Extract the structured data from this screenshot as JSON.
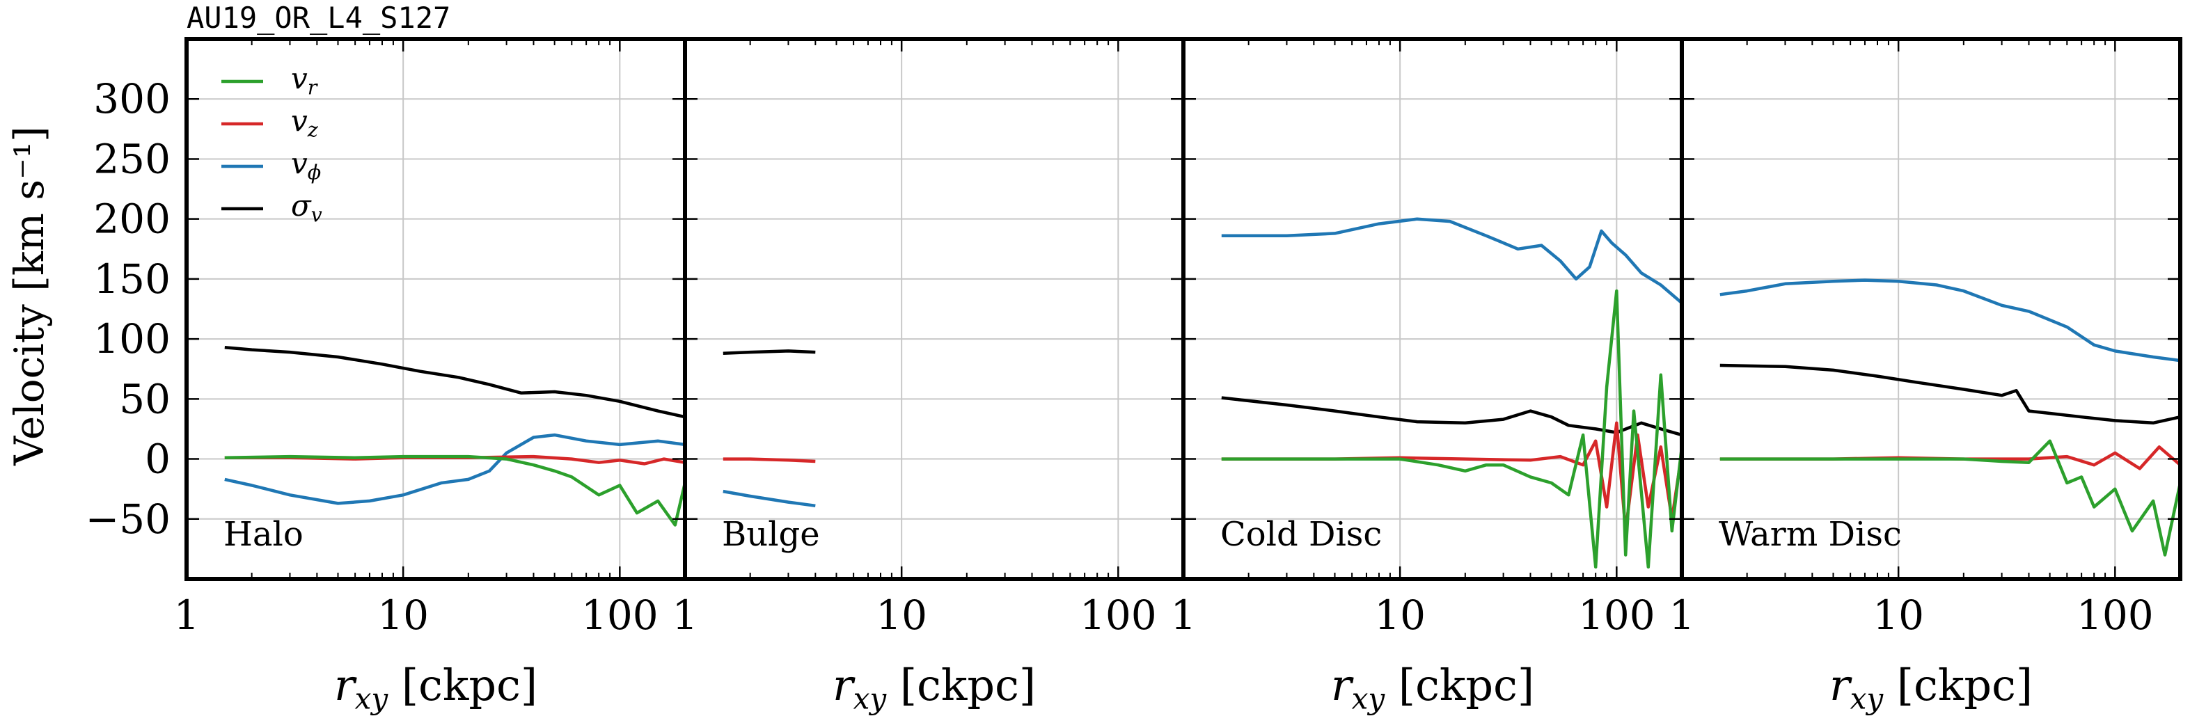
{
  "figure_title": "AU19_OR_L4_S127",
  "colors": {
    "vr": "#2ca02c",
    "vz": "#d62728",
    "vphi": "#1f77b4",
    "sigma": "#000000",
    "grid": "#c8c8c8"
  },
  "chart_data": [
    {
      "type": "line",
      "panel_label": "Halo",
      "xlabel_main": "r",
      "xlabel_sub": "xy",
      "xlabel_unit": "[ckpc]",
      "ylabel": "Velocity [km s⁻¹]",
      "xscale": "log",
      "xlim": [
        1,
        200
      ],
      "ylim": [
        -100,
        350
      ],
      "xticks": [
        1,
        10,
        100
      ],
      "xtick_labels": [
        "1",
        "10",
        "100"
      ],
      "yticks": [
        -50,
        0,
        50,
        100,
        150,
        200,
        250,
        300
      ],
      "ytick_labels": [
        "−50",
        "0",
        "50",
        "100",
        "150",
        "200",
        "250",
        "300"
      ],
      "grid": true,
      "legend": {
        "placement": "top-left",
        "entries": [
          {
            "key": "vr",
            "main": "v",
            "sub": "r"
          },
          {
            "key": "vz",
            "main": "v",
            "sub": "z"
          },
          {
            "key": "vphi",
            "main": "v",
            "sub": "ϕ"
          },
          {
            "key": "sigma",
            "main": "σ",
            "sub": "v"
          }
        ]
      },
      "series": [
        {
          "key": "sigma",
          "x": [
            1.5,
            2,
            3,
            5,
            8,
            12,
            18,
            25,
            35,
            50,
            70,
            100,
            150,
            200
          ],
          "y": [
            93,
            91,
            89,
            85,
            79,
            73,
            68,
            62,
            55,
            56,
            53,
            48,
            40,
            35
          ]
        },
        {
          "key": "vphi",
          "x": [
            1.5,
            2,
            3,
            5,
            7,
            10,
            15,
            20,
            25,
            30,
            40,
            50,
            70,
            100,
            150,
            200
          ],
          "y": [
            -17,
            -22,
            -30,
            -37,
            -35,
            -30,
            -20,
            -17,
            -10,
            5,
            18,
            20,
            15,
            12,
            15,
            12
          ]
        },
        {
          "key": "vz",
          "x": [
            1.5,
            3,
            6,
            10,
            20,
            40,
            60,
            80,
            100,
            130,
            160,
            200
          ],
          "y": [
            1,
            1,
            0,
            1,
            1,
            2,
            0,
            -3,
            -1,
            -4,
            0,
            -3
          ]
        },
        {
          "key": "vr",
          "x": [
            1.5,
            3,
            6,
            10,
            20,
            30,
            40,
            50,
            60,
            80,
            100,
            120,
            150,
            180,
            200
          ],
          "y": [
            1,
            2,
            1,
            2,
            2,
            0,
            -5,
            -10,
            -15,
            -30,
            -22,
            -45,
            -35,
            -55,
            -20
          ]
        }
      ]
    },
    {
      "type": "line",
      "panel_label": "Bulge",
      "xlabel_main": "r",
      "xlabel_sub": "xy",
      "xlabel_unit": "[ckpc]",
      "xscale": "log",
      "xlim": [
        1,
        200
      ],
      "ylim": [
        -100,
        350
      ],
      "xticks": [
        1,
        10,
        100
      ],
      "xtick_labels": [
        "1",
        "10",
        "100"
      ],
      "grid": true,
      "series": [
        {
          "key": "sigma",
          "x": [
            1.5,
            2,
            3,
            4
          ],
          "y": [
            88,
            89,
            90,
            89
          ]
        },
        {
          "key": "vz",
          "x": [
            1.5,
            2,
            3,
            4
          ],
          "y": [
            0,
            0,
            -1,
            -2
          ]
        },
        {
          "key": "vphi",
          "x": [
            1.5,
            2,
            3,
            4
          ],
          "y": [
            -27,
            -31,
            -36,
            -39
          ]
        }
      ]
    },
    {
      "type": "line",
      "panel_label": "Cold Disc",
      "xlabel_main": "r",
      "xlabel_sub": "xy",
      "xlabel_unit": "[ckpc]",
      "xscale": "log",
      "xlim": [
        1,
        200
      ],
      "ylim": [
        -100,
        350
      ],
      "xticks": [
        1,
        10,
        100
      ],
      "xtick_labels": [
        "1",
        "10",
        "100"
      ],
      "grid": true,
      "series": [
        {
          "key": "vphi",
          "x": [
            1.5,
            3,
            5,
            8,
            12,
            17,
            25,
            35,
            45,
            55,
            65,
            75,
            85,
            95,
            110,
            130,
            160,
            200
          ],
          "y": [
            186,
            186,
            188,
            196,
            200,
            198,
            186,
            175,
            178,
            165,
            150,
            160,
            190,
            180,
            170,
            155,
            145,
            130
          ]
        },
        {
          "key": "sigma",
          "x": [
            1.5,
            3,
            5,
            8,
            12,
            20,
            30,
            40,
            50,
            60,
            80,
            100,
            130,
            160,
            200
          ],
          "y": [
            51,
            45,
            40,
            35,
            31,
            30,
            33,
            40,
            35,
            28,
            25,
            22,
            30,
            25,
            20
          ]
        },
        {
          "key": "vz",
          "x": [
            1.5,
            5,
            10,
            20,
            40,
            55,
            70,
            80,
            90,
            100,
            110,
            125,
            140,
            160,
            180,
            200
          ],
          "y": [
            0,
            0,
            1,
            0,
            -1,
            2,
            -5,
            15,
            -40,
            30,
            -60,
            20,
            -40,
            10,
            -50,
            5
          ]
        },
        {
          "key": "vr",
          "x": [
            1.5,
            5,
            10,
            15,
            20,
            25,
            30,
            40,
            50,
            60,
            70,
            80,
            90,
            100,
            110,
            120,
            140,
            160,
            180,
            200
          ],
          "y": [
            0,
            0,
            0,
            -5,
            -10,
            -5,
            -5,
            -15,
            -20,
            -30,
            20,
            -90,
            60,
            140,
            -80,
            40,
            -90,
            70,
            -60,
            10
          ]
        }
      ]
    },
    {
      "type": "line",
      "panel_label": "Warm Disc",
      "xlabel_main": "r",
      "xlabel_sub": "xy",
      "xlabel_unit": "[ckpc]",
      "xscale": "log",
      "xlim": [
        1,
        200
      ],
      "ylim": [
        -100,
        350
      ],
      "xticks": [
        1,
        10,
        100
      ],
      "xtick_labels": [
        "1",
        "10",
        "100"
      ],
      "grid": true,
      "series": [
        {
          "key": "vphi",
          "x": [
            1.5,
            2,
            3,
            5,
            7,
            10,
            15,
            20,
            30,
            40,
            60,
            80,
            100,
            150,
            200
          ],
          "y": [
            137,
            140,
            146,
            148,
            149,
            148,
            145,
            140,
            128,
            123,
            110,
            95,
            90,
            85,
            82
          ]
        },
        {
          "key": "sigma",
          "x": [
            1.5,
            3,
            5,
            8,
            12,
            20,
            30,
            35,
            40,
            50,
            70,
            100,
            150,
            200
          ],
          "y": [
            78,
            77,
            74,
            69,
            64,
            58,
            53,
            57,
            40,
            38,
            35,
            32,
            30,
            35
          ]
        },
        {
          "key": "vz",
          "x": [
            1.5,
            5,
            10,
            20,
            40,
            60,
            80,
            100,
            130,
            160,
            200
          ],
          "y": [
            0,
            0,
            1,
            0,
            0,
            2,
            -5,
            5,
            -8,
            10,
            -5
          ]
        },
        {
          "key": "vr",
          "x": [
            1.5,
            5,
            10,
            20,
            30,
            40,
            50,
            60,
            70,
            80,
            100,
            120,
            150,
            170,
            200
          ],
          "y": [
            0,
            0,
            0,
            0,
            -2,
            -3,
            15,
            -20,
            -15,
            -40,
            -25,
            -60,
            -35,
            -80,
            -20
          ]
        }
      ]
    }
  ]
}
